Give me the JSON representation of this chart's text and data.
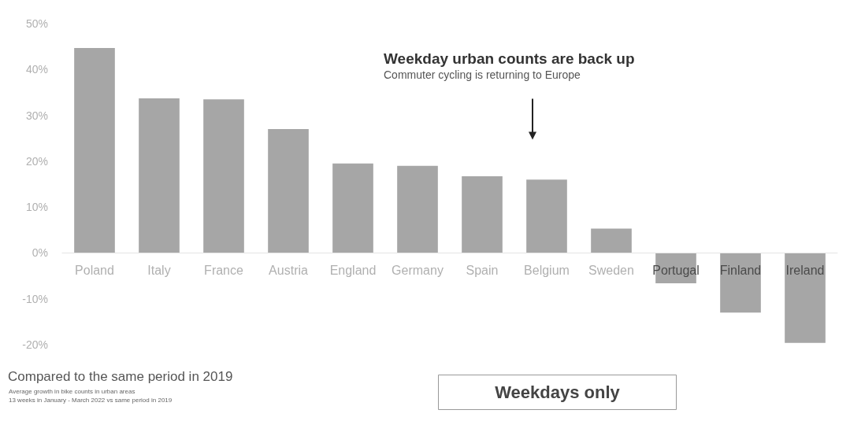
{
  "chart_data": {
    "type": "bar",
    "title": "Weekday urban counts are back up",
    "subtitle": "Commuter cycling is returning to Europe",
    "categories": [
      "Poland",
      "Italy",
      "France",
      "Austria",
      "England",
      "Germany",
      "Spain",
      "Belgium",
      "Sweden",
      "Portugal",
      "Finland",
      "Ireland"
    ],
    "values": [
      44.7,
      33.7,
      33.5,
      27,
      19.5,
      19,
      16.7,
      16,
      5.3,
      -6.6,
      -13,
      -19.6
    ],
    "color": "#a6a6a6",
    "ylim": [
      -20,
      50
    ],
    "yticks": [
      {
        "value": -20,
        "label": "-20%"
      },
      {
        "value": -10,
        "label": "-10%"
      },
      {
        "value": 0,
        "label": "0%"
      },
      {
        "value": 10,
        "label": "10%"
      },
      {
        "value": 20,
        "label": "20%"
      },
      {
        "value": 30,
        "label": "30%"
      },
      {
        "value": 40,
        "label": "40%"
      },
      {
        "value": 50,
        "label": "50%"
      }
    ],
    "grid": false,
    "annotations": [
      "Compared to the same period in 2019",
      "Average growth in bike counts in urban areas",
      "13 weeks in January - March 2022 vs same period in 2019",
      "Weekdays only"
    ]
  }
}
